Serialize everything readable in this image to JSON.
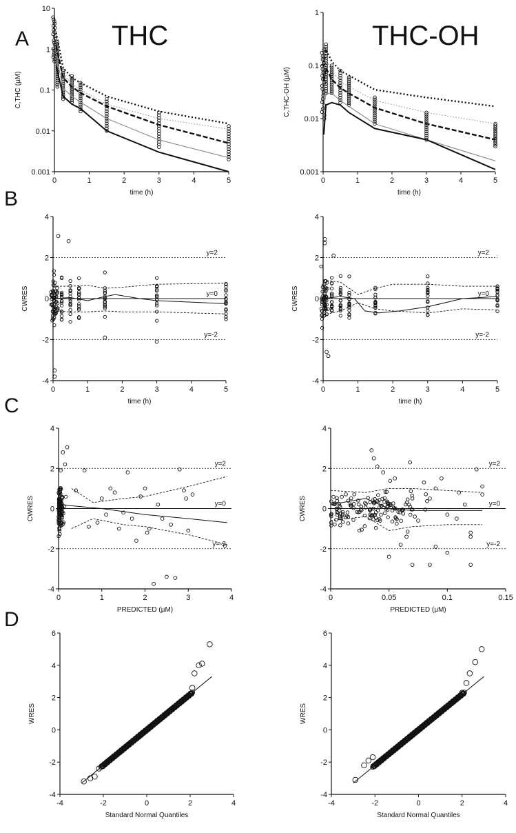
{
  "panel_letters": {
    "a": "A",
    "b": "B",
    "c": "C",
    "d": "D"
  },
  "titles": {
    "thc": "THC",
    "thcoh": "THC-OH"
  },
  "colors": {
    "ink": "#111111",
    "grey": "#888888",
    "light": "#aaaaaa"
  },
  "chart_data": [
    {
      "id": "A_THC",
      "type": "line",
      "scale_y": "log",
      "xlabel": "time (h)",
      "ylabel": "C,THC (µM)",
      "xlim": [
        0,
        5
      ],
      "ylim": [
        0.001,
        10
      ],
      "xticks": [
        "0",
        "1",
        "2",
        "3",
        "4",
        "5"
      ],
      "yticks": [
        "0.001",
        "0.01",
        "0.1",
        "1",
        "10"
      ],
      "times": [
        0,
        0.083,
        0.25,
        0.5,
        0.75,
        1.5,
        3,
        5
      ],
      "series": [
        {
          "name": "upper 95th",
          "style": "dotted-bold",
          "x": [
            0.05,
            0.25,
            0.5,
            0.75,
            1.5,
            3,
            5
          ],
          "y": [
            2.5,
            0.35,
            0.2,
            0.15,
            0.07,
            0.03,
            0.015
          ]
        },
        {
          "name": "upper obs",
          "style": "dotted-thin",
          "x": [
            0.05,
            0.25,
            0.5,
            0.75,
            1.5,
            3,
            5
          ],
          "y": [
            1.8,
            0.25,
            0.14,
            0.1,
            0.045,
            0.02,
            0.011
          ]
        },
        {
          "name": "median",
          "style": "dashed-bold",
          "x": [
            0.05,
            0.25,
            0.5,
            0.75,
            1.5,
            3,
            5
          ],
          "y": [
            1.2,
            0.2,
            0.12,
            0.085,
            0.04,
            0.014,
            0.005
          ]
        },
        {
          "name": "lower obs",
          "style": "thin-grey",
          "x": [
            0.05,
            0.25,
            0.5,
            0.75,
            1.5,
            3,
            5
          ],
          "y": [
            0.7,
            0.11,
            0.07,
            0.05,
            0.02,
            0.006,
            0.0022
          ]
        },
        {
          "name": "lower 5th",
          "style": "solid-bold",
          "x": [
            0.05,
            0.25,
            0.5,
            0.75,
            1.5,
            3,
            5
          ],
          "y": [
            0.4,
            0.07,
            0.045,
            0.035,
            0.01,
            0.003,
            0.001
          ]
        }
      ],
      "observations": {
        "x": [
          0,
          0.083,
          0.25,
          0.5,
          0.75,
          1.5,
          3,
          5
        ],
        "ymin": [
          0.5,
          0.12,
          0.06,
          0.05,
          0.03,
          0.01,
          0.004,
          0.002
        ],
        "ymax": [
          6,
          1.5,
          0.3,
          0.22,
          0.15,
          0.06,
          0.028,
          0.013
        ]
      }
    },
    {
      "id": "A_THCOH",
      "type": "line",
      "scale_y": "log",
      "xlabel": "time (h)",
      "ylabel": "C,THC-OH (µM)",
      "xlim": [
        0,
        5
      ],
      "ylim": [
        0.001,
        1
      ],
      "xticks": [
        "0",
        "1",
        "2",
        "3",
        "4",
        "5"
      ],
      "yticks": [
        "0.001",
        "0.01",
        "0.1",
        "1"
      ],
      "times": [
        0,
        0.083,
        0.25,
        0.5,
        0.75,
        1.5,
        3,
        5
      ],
      "series": [
        {
          "name": "upper 95th",
          "style": "dotted-bold",
          "x": [
            0.02,
            0.083,
            0.25,
            0.5,
            0.75,
            1.5,
            3,
            5
          ],
          "y": [
            0.1,
            0.2,
            0.12,
            0.08,
            0.065,
            0.035,
            0.025,
            0.017
          ]
        },
        {
          "name": "upper obs",
          "style": "dotted-thin",
          "x": [
            0.02,
            0.083,
            0.25,
            0.5,
            0.75,
            1.5,
            3,
            5
          ],
          "y": [
            0.07,
            0.13,
            0.08,
            0.05,
            0.04,
            0.022,
            0.013,
            0.008
          ]
        },
        {
          "name": "median",
          "style": "dashed-bold",
          "x": [
            0.02,
            0.083,
            0.25,
            0.5,
            0.75,
            1.5,
            3,
            5
          ],
          "y": [
            0.05,
            0.09,
            0.055,
            0.038,
            0.03,
            0.016,
            0.008,
            0.004
          ]
        },
        {
          "name": "lower obs",
          "style": "thin-grey",
          "x": [
            0.02,
            0.083,
            0.25,
            0.5,
            0.75,
            1.5,
            3,
            5
          ],
          "y": [
            0.015,
            0.03,
            0.03,
            0.022,
            0.017,
            0.008,
            0.004,
            0.0016
          ]
        },
        {
          "name": "lower 5th",
          "style": "solid-bold",
          "x": [
            0.02,
            0.083,
            0.25,
            0.5,
            0.75,
            1.5,
            3,
            5
          ],
          "y": [
            0.005,
            0.018,
            0.02,
            0.018,
            0.013,
            0.0065,
            0.004,
            0.0011
          ]
        }
      ],
      "observations": {
        "x": [
          0,
          0.083,
          0.25,
          0.5,
          0.75,
          1.5,
          3,
          5
        ],
        "ymin": [
          0.01,
          0.03,
          0.03,
          0.02,
          0.018,
          0.008,
          0.004,
          0.003
        ],
        "ymax": [
          0.2,
          0.25,
          0.1,
          0.08,
          0.06,
          0.025,
          0.013,
          0.008
        ]
      }
    },
    {
      "id": "B_THC",
      "type": "scatter",
      "xlabel": "time (h)",
      "ylabel": "CWRES",
      "xlim": [
        0,
        5
      ],
      "ylim": [
        -4,
        4
      ],
      "xticks": [
        "0",
        "1",
        "2",
        "3",
        "4",
        "5"
      ],
      "yticks": [
        "-4",
        "-2",
        "0",
        "2",
        "4"
      ],
      "reference_labels": [
        "y=2",
        "y=0",
        "y=-2"
      ],
      "times": [
        0,
        0.083,
        0.25,
        0.5,
        0.75,
        1.5,
        3,
        5
      ],
      "smooth_median": {
        "x": [
          0,
          0.5,
          1,
          1.5,
          1.8,
          2.5,
          3,
          5
        ],
        "y": [
          0,
          0.05,
          -0.1,
          0.1,
          0.2,
          0,
          -0.1,
          -0.25
        ]
      },
      "smooth_upper": {
        "x": [
          0,
          0.5,
          1,
          1.5,
          2,
          3,
          5
        ],
        "y": [
          0.6,
          0.6,
          0.65,
          0.5,
          0.55,
          0.7,
          0.75
        ]
      },
      "smooth_lower": {
        "x": [
          0,
          0.5,
          1,
          1.5,
          2,
          3,
          5
        ],
        "y": [
          -0.6,
          -0.65,
          -0.65,
          -0.6,
          -0.65,
          -0.65,
          -0.75
        ]
      },
      "outliers": {
        "x": [
          0.05,
          0.05,
          0.15,
          0.45,
          3,
          1.5
        ],
        "y": [
          -3.5,
          -3.8,
          3.05,
          2.8,
          -2.1,
          -1.9
        ]
      }
    },
    {
      "id": "B_THCOH",
      "type": "scatter",
      "xlabel": "time (h)",
      "ylabel": "CWRES",
      "xlim": [
        0,
        5
      ],
      "ylim": [
        -4,
        4
      ],
      "xticks": [
        "0",
        "1",
        "2",
        "3",
        "4",
        "5"
      ],
      "yticks": [
        "-4",
        "-2",
        "0",
        "2",
        "4"
      ],
      "reference_labels": [
        "y=2",
        "y=0",
        "y=-2"
      ],
      "times": [
        0,
        0.083,
        0.25,
        0.5,
        0.75,
        1.5,
        3,
        5
      ],
      "smooth_median": {
        "x": [
          0,
          0.5,
          0.9,
          1.2,
          1.6,
          2.2,
          3,
          4,
          5
        ],
        "y": [
          0,
          0.1,
          0,
          -0.6,
          -0.7,
          -0.6,
          -0.4,
          0,
          0.1
        ]
      },
      "smooth_upper": {
        "x": [
          0,
          0.5,
          1,
          1.5,
          2,
          3,
          4,
          5
        ],
        "y": [
          0.9,
          0.8,
          0.2,
          0.5,
          0.7,
          0.7,
          0.6,
          0.6
        ]
      },
      "smooth_lower": {
        "x": [
          0,
          0.5,
          1,
          1.5,
          2,
          3,
          4,
          5
        ],
        "y": [
          -0.8,
          -0.6,
          -0.2,
          -0.5,
          -0.6,
          -0.7,
          -0.5,
          -0.55
        ]
      },
      "outliers": {
        "x": [
          0.05,
          0.05,
          0.15,
          0.1,
          0.3
        ],
        "y": [
          2.9,
          2.7,
          -2.8,
          -2.6,
          2.1
        ]
      }
    },
    {
      "id": "C_THC",
      "type": "scatter",
      "xlabel": "PREDICTED (µM)",
      "ylabel": "CWRES",
      "xlim": [
        0,
        4
      ],
      "ylim": [
        -4,
        4
      ],
      "xticks": [
        "0",
        "1",
        "2",
        "3",
        "4"
      ],
      "yticks": [
        "-4",
        "-2",
        "0",
        "2",
        "4"
      ],
      "reference_labels": [
        "y=2",
        "y=0",
        "y=-2"
      ],
      "smooth_median": {
        "x": [
          0,
          0.5,
          1,
          2,
          3,
          3.9
        ],
        "y": [
          0.2,
          0.1,
          0,
          -0.3,
          -0.5,
          -0.7
        ]
      },
      "smooth_upper": {
        "x": [
          0.3,
          0.8,
          1.5,
          2,
          3,
          3.9
        ],
        "y": [
          1.0,
          0.3,
          0.5,
          0.6,
          1.1,
          1.6
        ]
      },
      "smooth_lower": {
        "x": [
          0.3,
          0.8,
          1.5,
          2,
          3,
          3.9
        ],
        "y": [
          -1.0,
          -0.5,
          -0.8,
          -0.9,
          -1.3,
          -1.8
        ]
      },
      "points": [
        [
          0.1,
          2.8
        ],
        [
          0.2,
          3.05
        ],
        [
          0.15,
          2.2
        ],
        [
          0.05,
          1.9
        ],
        [
          0.4,
          0.9
        ],
        [
          0.6,
          1.9
        ],
        [
          0.7,
          -0.9
        ],
        [
          1.0,
          0.5
        ],
        [
          1.1,
          -0.3
        ],
        [
          1.3,
          0.8
        ],
        [
          1.4,
          -1.0
        ],
        [
          1.6,
          1.8
        ],
        [
          1.7,
          -0.5
        ],
        [
          1.8,
          -1.6
        ],
        [
          1.9,
          0.6
        ],
        [
          2.0,
          1.0
        ],
        [
          2.1,
          -1.0
        ],
        [
          2.2,
          -3.75
        ],
        [
          2.3,
          0.2
        ],
        [
          2.4,
          -0.5
        ],
        [
          2.5,
          -3.4
        ],
        [
          2.6,
          -0.8
        ],
        [
          2.7,
          -3.45
        ],
        [
          2.8,
          1.95
        ],
        [
          2.9,
          0.9
        ],
        [
          3.0,
          -1.1
        ],
        [
          3.1,
          0.7
        ],
        [
          2.95,
          0.5
        ],
        [
          3.85,
          -1.85
        ],
        [
          0.9,
          -0.7
        ],
        [
          1.2,
          1.0
        ],
        [
          1.5,
          -0.2
        ],
        [
          2.05,
          -1.2
        ]
      ]
    },
    {
      "id": "C_THCOH",
      "type": "scatter",
      "xlabel": "PREDICTED (µM)",
      "ylabel": "CWRES",
      "xlim": [
        0,
        0.15
      ],
      "ylim": [
        -4,
        4
      ],
      "xticks": [
        "0",
        "0.05",
        "0.1",
        "0.15"
      ],
      "yticks": [
        "-4",
        "-2",
        "0",
        "2",
        "4"
      ],
      "reference_labels": [
        "y=2",
        "y=0",
        "y=-2"
      ],
      "smooth_median": {
        "x": [
          0,
          0.03,
          0.05,
          0.07,
          0.1,
          0.13
        ],
        "y": [
          0.2,
          0.5,
          0,
          -0.1,
          -0.1,
          -0.1
        ]
      },
      "smooth_upper": {
        "x": [
          0,
          0.03,
          0.05,
          0.07,
          0.1,
          0.13
        ],
        "y": [
          0.9,
          0.8,
          1.0,
          1.0,
          0.9,
          0.8
        ]
      },
      "smooth_lower": {
        "x": [
          0,
          0.03,
          0.05,
          0.07,
          0.1,
          0.13
        ],
        "y": [
          -0.6,
          -0.4,
          -1.1,
          -0.9,
          -0.8,
          -0.8
        ]
      },
      "points": [
        [
          0.035,
          2.9
        ],
        [
          0.037,
          2.5
        ],
        [
          0.04,
          2.1
        ],
        [
          0.045,
          1.8
        ],
        [
          0.068,
          2.3
        ],
        [
          0.05,
          -2.4
        ],
        [
          0.06,
          -1.8
        ],
        [
          0.07,
          -2.8
        ],
        [
          0.085,
          -2.8
        ],
        [
          0.09,
          -1.9
        ],
        [
          0.1,
          -2.2
        ],
        [
          0.12,
          -2.8
        ],
        [
          0.125,
          1.95
        ],
        [
          0.13,
          1.1
        ],
        [
          0.13,
          0.7
        ],
        [
          0.055,
          1.5
        ],
        [
          0.08,
          1.3
        ],
        [
          0.095,
          1.5
        ],
        [
          0.11,
          0.8
        ],
        [
          0.115,
          0.2
        ],
        [
          0.12,
          -1.4
        ],
        [
          0.12,
          -1.2
        ],
        [
          0.065,
          -1.4
        ],
        [
          0.075,
          -0.6
        ],
        [
          0.085,
          0.5
        ],
        [
          0.1,
          -0.3
        ],
        [
          0.108,
          -0.5
        ],
        [
          0.09,
          1.0
        ]
      ]
    },
    {
      "id": "D_THC",
      "type": "scatter",
      "xlabel": "Standard Normal Quantiles",
      "ylabel": "WRES",
      "xlim": [
        -4,
        4
      ],
      "ylim": [
        -4,
        6
      ],
      "xticks": [
        "-4",
        "-2",
        "0",
        "2",
        "4"
      ],
      "yticks": [
        "-4",
        "-2",
        "0",
        "2",
        "4",
        "6"
      ],
      "reference_line": {
        "x": [
          -3,
          3
        ],
        "y": [
          -3.3,
          3.3
        ]
      },
      "tail_points": [
        [
          -2.9,
          -3.2
        ],
        [
          -2.6,
          -3.0
        ],
        [
          -2.4,
          -2.9
        ],
        [
          -2.2,
          -2.4
        ],
        [
          2.1,
          2.6
        ],
        [
          2.2,
          3.5
        ],
        [
          2.4,
          4.0
        ],
        [
          2.55,
          4.1
        ],
        [
          2.9,
          5.3
        ]
      ]
    },
    {
      "id": "D_THCOH",
      "type": "scatter",
      "xlabel": "Standard Normal Quantiles",
      "ylabel": "WRES",
      "xlim": [
        -4,
        4
      ],
      "ylim": [
        -4,
        6
      ],
      "xticks": [
        "-4",
        "-2",
        "0",
        "2",
        "4"
      ],
      "yticks": [
        "-4",
        "-2",
        "0",
        "2",
        "4",
        "6"
      ],
      "reference_line": {
        "x": [
          -3,
          3
        ],
        "y": [
          -3.3,
          3.3
        ]
      },
      "tail_points": [
        [
          -2.9,
          -3.1
        ],
        [
          -2.5,
          -2.2
        ],
        [
          -2.3,
          -1.9
        ],
        [
          -2.1,
          -1.7
        ],
        [
          2.0,
          2.3
        ],
        [
          2.2,
          2.9
        ],
        [
          2.35,
          3.5
        ],
        [
          2.6,
          4.2
        ],
        [
          2.9,
          5.0
        ]
      ]
    }
  ]
}
